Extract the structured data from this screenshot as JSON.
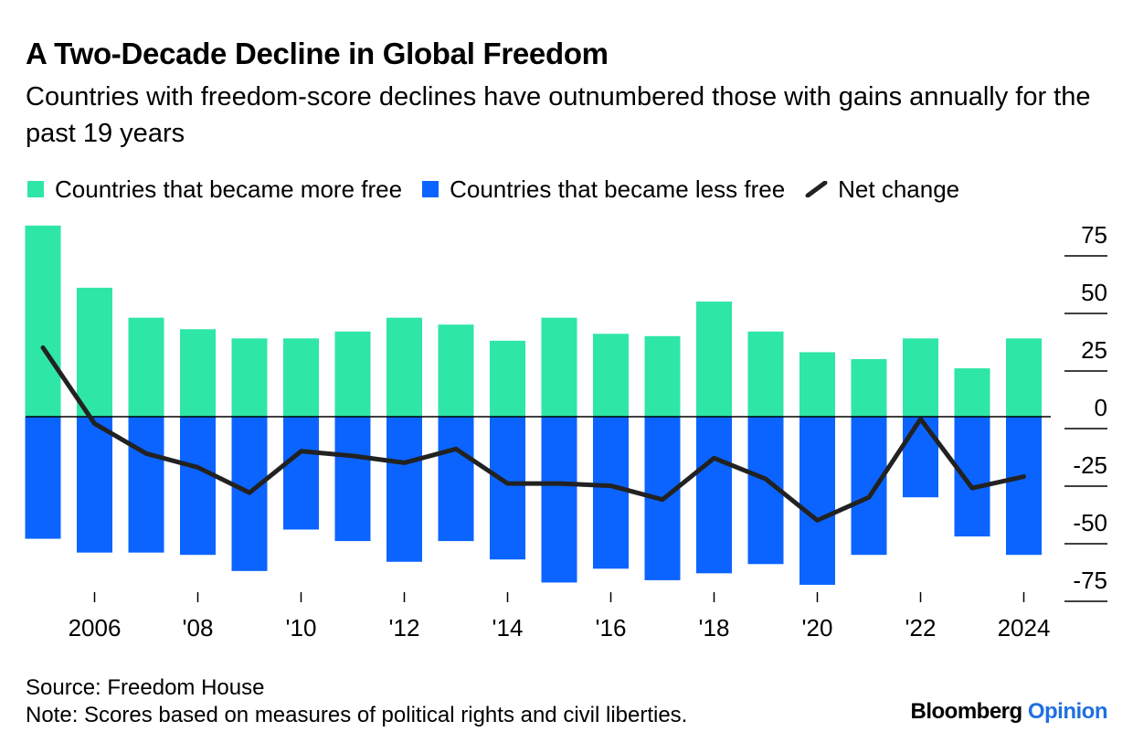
{
  "header": {
    "title": "A Two-Decade Decline in Global Freedom",
    "subtitle": "Countries with freedom-score declines have outnumbered those with gains annually for the past 19 years"
  },
  "legend": {
    "more_free": "Countries that became more free",
    "less_free": "Countries that became less free",
    "net": "Net change"
  },
  "colors": {
    "more_free": "#2ee6a6",
    "less_free": "#0b64ff",
    "net": "#222222",
    "axis": "#000000"
  },
  "chart_data": {
    "type": "bar",
    "title": "A Two-Decade Decline in Global Freedom",
    "categories": [
      "2005",
      "2006",
      "2007",
      "2008",
      "2009",
      "2010",
      "2011",
      "2012",
      "2013",
      "2014",
      "2015",
      "2016",
      "2017",
      "2018",
      "2019",
      "2020",
      "2021",
      "2022",
      "2023",
      "2024"
    ],
    "x_tick_labels": [
      {
        "year": "2006",
        "label": "2006"
      },
      {
        "year": "2008",
        "label": "'08"
      },
      {
        "year": "2010",
        "label": "'10"
      },
      {
        "year": "2012",
        "label": "'12"
      },
      {
        "year": "2014",
        "label": "'14"
      },
      {
        "year": "2016",
        "label": "'16"
      },
      {
        "year": "2018",
        "label": "'18"
      },
      {
        "year": "2020",
        "label": "'20"
      },
      {
        "year": "2022",
        "label": "'22"
      },
      {
        "year": "2024",
        "label": "2024"
      }
    ],
    "series": [
      {
        "name": "Countries that became more free",
        "type": "bar",
        "values": [
          83,
          56,
          43,
          38,
          34,
          34,
          37,
          43,
          40,
          33,
          43,
          36,
          35,
          50,
          37,
          28,
          25,
          34,
          21,
          34
        ]
      },
      {
        "name": "Countries that became less free",
        "type": "bar",
        "values": [
          -53,
          -59,
          -59,
          -60,
          -67,
          -49,
          -54,
          -63,
          -54,
          -62,
          -72,
          -66,
          -71,
          -68,
          -64,
          -73,
          -60,
          -35,
          -52,
          -60
        ]
      },
      {
        "name": "Net change",
        "type": "line",
        "values": [
          30,
          -3,
          -16,
          -22,
          -33,
          -15,
          -17,
          -20,
          -14,
          -29,
          -29,
          -30,
          -36,
          -18,
          -27,
          -45,
          -35,
          -1,
          -31,
          -26
        ]
      }
    ],
    "y_ticks": [
      75,
      50,
      25,
      0,
      -25,
      -50,
      -75
    ],
    "ylim": [
      -78,
      85
    ],
    "ylabel": "",
    "xlabel": "",
    "legend_position": "top"
  },
  "footer": {
    "source": "Source: Freedom House",
    "note": "Note: Scores based on measures of political rights and civil liberties.",
    "brand": "Bloomberg",
    "brand_suffix": "Opinion"
  }
}
